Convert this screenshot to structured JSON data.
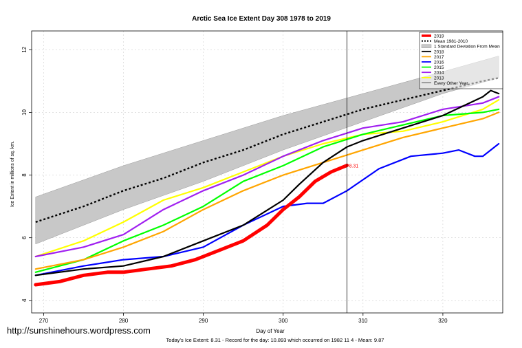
{
  "chart_data": {
    "type": "line",
    "title": "Arctic Sea Ice Extent Day 308 1978 to 2019",
    "xlabel": "Day of Year",
    "ylabel": "Ice Extent in millions of sq. km.",
    "xlim": [
      268.5,
      327.5
    ],
    "ylim": [
      3.6,
      12.6
    ],
    "xticks": [
      270,
      280,
      290,
      300,
      310,
      320
    ],
    "yticks": [
      4,
      6,
      8,
      10,
      12
    ],
    "grid": true,
    "current_day": 308,
    "current_value_label": "8.31",
    "watermark": "http://sunshinehours.wordpress.com",
    "footer": "Today's Ice Extent: 8.31  - Record for the day: 10.893 which occurred on 1982 11 4  - Mean: 9.87",
    "legend": {
      "position": "top-right",
      "entries": [
        {
          "label": "2019",
          "color": "#ff0000",
          "style": "thick"
        },
        {
          "label": "Mean 1981-2010",
          "color": "#000000",
          "style": "dotted"
        },
        {
          "label": "1 Standard Deviation From Mean",
          "color": "#c8c8c8",
          "style": "box"
        },
        {
          "label": "2018",
          "color": "#000000",
          "style": "solid"
        },
        {
          "label": "2017",
          "color": "#ffa500",
          "style": "solid"
        },
        {
          "label": "2016",
          "color": "#0000ff",
          "style": "solid"
        },
        {
          "label": "2015",
          "color": "#00ff00",
          "style": "solid"
        },
        {
          "label": "2014",
          "color": "#a020f0",
          "style": "solid"
        },
        {
          "label": "2013",
          "color": "#ffff00",
          "style": "solid"
        },
        {
          "label": "Every Other Year",
          "color": "#000000",
          "style": "thin"
        }
      ]
    },
    "band": {
      "x": [
        269,
        280,
        290,
        300,
        310,
        320,
        327
      ],
      "lower": [
        5.8,
        6.9,
        7.8,
        8.8,
        9.7,
        10.6,
        11.1
      ],
      "upper": [
        7.3,
        8.3,
        9.1,
        9.9,
        10.6,
        11.3,
        11.8
      ]
    },
    "mean": {
      "x": [
        269,
        275,
        280,
        285,
        290,
        295,
        300,
        305,
        310,
        315,
        320,
        325,
        327
      ],
      "y": [
        6.5,
        7.0,
        7.5,
        7.9,
        8.4,
        8.8,
        9.3,
        9.7,
        10.1,
        10.4,
        10.7,
        11.0,
        11.1
      ]
    },
    "series": [
      {
        "name": "2013",
        "color": "#ffff00",
        "x": [
          269,
          275,
          280,
          285,
          290,
          295,
          300,
          305,
          310,
          315,
          320,
          325,
          327
        ],
        "y": [
          5.4,
          5.9,
          6.5,
          7.2,
          7.6,
          8.1,
          8.6,
          9.0,
          9.3,
          9.4,
          9.7,
          10.1,
          10.4
        ]
      },
      {
        "name": "2014",
        "color": "#a020f0",
        "x": [
          269,
          275,
          280,
          285,
          290,
          295,
          300,
          305,
          310,
          315,
          320,
          325,
          327
        ],
        "y": [
          5.4,
          5.7,
          6.1,
          6.9,
          7.5,
          8.0,
          8.6,
          9.1,
          9.5,
          9.7,
          10.1,
          10.3,
          10.5
        ]
      },
      {
        "name": "2015",
        "color": "#00ff00",
        "x": [
          269,
          275,
          280,
          285,
          290,
          295,
          300,
          305,
          310,
          315,
          320,
          325,
          327
        ],
        "y": [
          4.9,
          5.3,
          5.9,
          6.4,
          7.0,
          7.8,
          8.3,
          8.9,
          9.3,
          9.6,
          9.9,
          10.0,
          10.1
        ]
      },
      {
        "name": "2016",
        "color": "#0000ff",
        "x": [
          269,
          275,
          280,
          285,
          290,
          295,
          300,
          303,
          305,
          308,
          312,
          316,
          320,
          322,
          324,
          325,
          327
        ],
        "y": [
          4.8,
          5.1,
          5.3,
          5.4,
          5.7,
          6.4,
          7.0,
          7.1,
          7.1,
          7.5,
          8.2,
          8.6,
          8.7,
          8.8,
          8.6,
          8.6,
          9.0
        ]
      },
      {
        "name": "2017",
        "color": "#ffa500",
        "x": [
          269,
          275,
          280,
          285,
          290,
          295,
          300,
          305,
          310,
          315,
          320,
          325,
          327
        ],
        "y": [
          5.0,
          5.3,
          5.7,
          6.2,
          6.9,
          7.5,
          8.0,
          8.4,
          8.8,
          9.2,
          9.5,
          9.8,
          10.0
        ]
      },
      {
        "name": "2018",
        "color": "#000000",
        "x": [
          269,
          275,
          280,
          285,
          290,
          295,
          300,
          302,
          305,
          308,
          310,
          315,
          320,
          325,
          326,
          327
        ],
        "y": [
          4.8,
          5.0,
          5.1,
          5.4,
          5.9,
          6.4,
          7.2,
          7.7,
          8.4,
          8.9,
          9.1,
          9.5,
          9.9,
          10.5,
          10.7,
          10.6
        ]
      },
      {
        "name": "2019",
        "color": "#ff0000",
        "x": [
          269,
          272,
          275,
          278,
          280,
          283,
          286,
          289,
          292,
          295,
          298,
          300,
          302,
          304,
          306,
          308
        ],
        "y": [
          4.5,
          4.6,
          4.8,
          4.9,
          4.9,
          5.0,
          5.1,
          5.3,
          5.6,
          5.9,
          6.4,
          6.9,
          7.3,
          7.8,
          8.1,
          8.31
        ]
      }
    ]
  }
}
